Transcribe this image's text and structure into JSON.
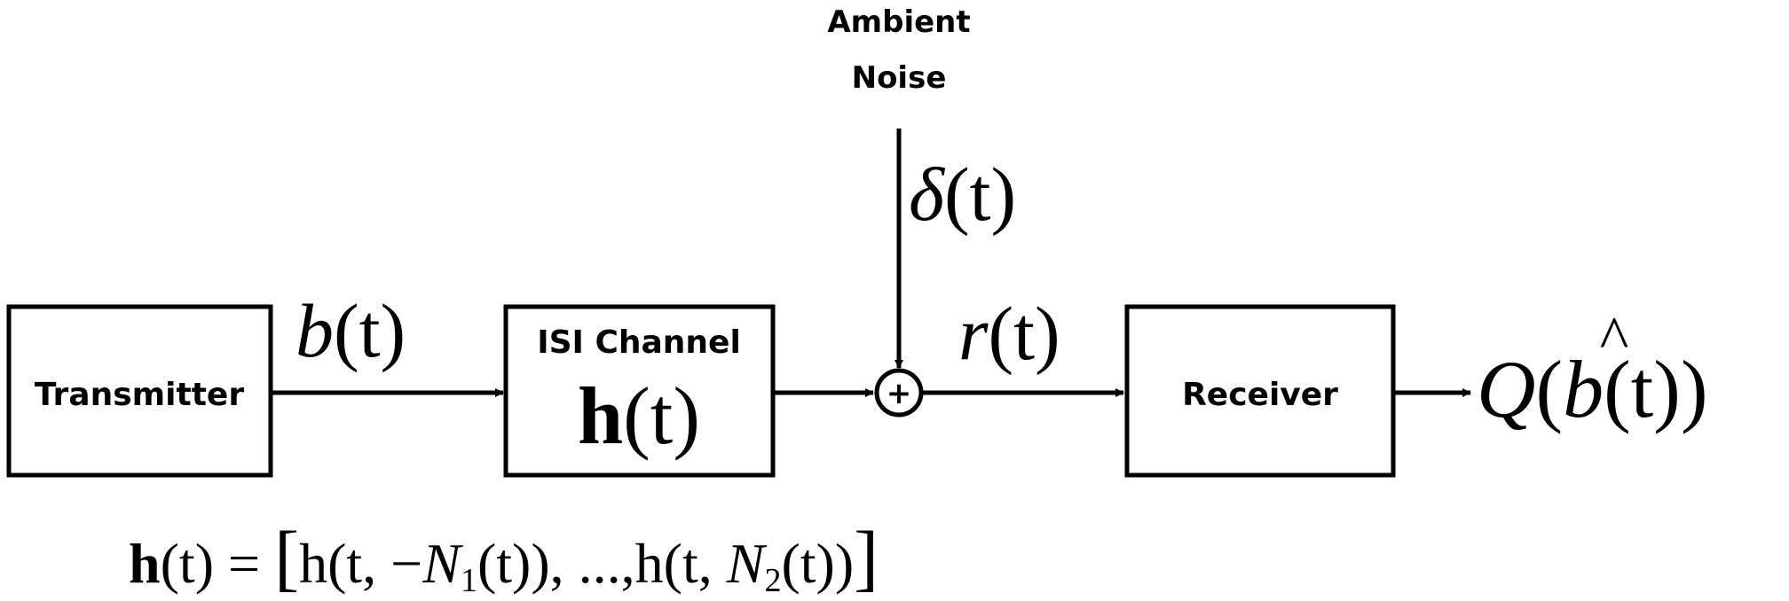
{
  "noise": {
    "label_line1": "Ambient",
    "label_line2": "Noise",
    "symbol": "δ",
    "arg": "(t)"
  },
  "transmitter": {
    "label": "Transmitter"
  },
  "signal_b": {
    "symbol": "b",
    "arg": "(t)"
  },
  "channel": {
    "label": "ISI Channel",
    "symbol": "h",
    "arg": "(t)"
  },
  "adder": {
    "symbol": "+"
  },
  "signal_r": {
    "symbol": "r",
    "arg": "(t)"
  },
  "receiver": {
    "label": "Receiver"
  },
  "output": {
    "symbol": "Q",
    "open": "(",
    "inner_symbol": "b",
    "hat": "^",
    "inner_arg": "(t)",
    "close": ")"
  },
  "equation": {
    "lhs_symbol": "h",
    "lhs_arg": "(t) = ",
    "bracket_open": "[",
    "term1_prefix": "h(t, −",
    "term1_N": "N",
    "term1_sub": "1",
    "term1_suffix": "(t)), ...,h(t, ",
    "term2_N": "N",
    "term2_sub": "2",
    "term2_suffix": "(t))",
    "bracket_close": "]"
  }
}
